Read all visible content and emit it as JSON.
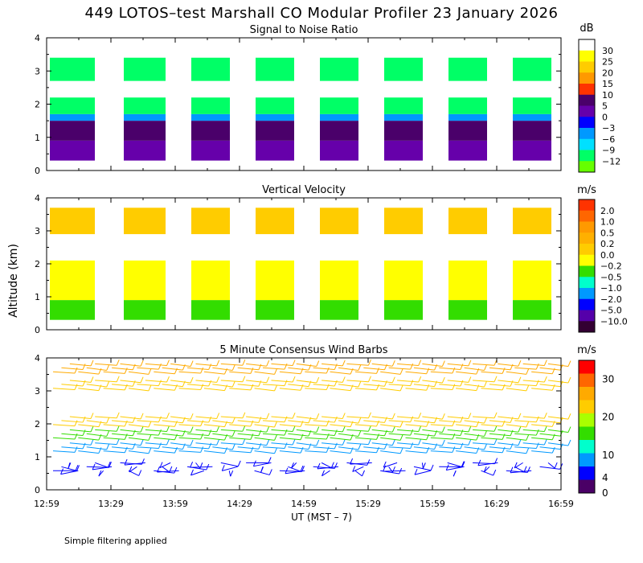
{
  "page": {
    "title": "449 LOTOS–test Marshall CO Modular Profiler 23 January 2026",
    "y_axis_label": "Altitude (km)",
    "x_axis_label": "UT  (MST – 7)",
    "footnote": "Simple filtering applied"
  },
  "chart_data": [
    {
      "type": "heatmap",
      "title": "Signal to Noise Ratio",
      "unit": "dB",
      "ylim": [
        0,
        4
      ],
      "y_ticks": [
        "0",
        "1",
        "2",
        "3",
        "4"
      ],
      "x_ticks": [
        "12:59",
        "13:29",
        "13:59",
        "14:29",
        "14:59",
        "15:29",
        "15:59",
        "16:29",
        "16:59"
      ],
      "colorbar_ticks": [
        "30",
        "25",
        "20",
        "15",
        "10",
        "5",
        "0",
        "−3",
        "−6",
        "−9",
        "−12"
      ],
      "colors": [
        "#ffffff",
        "#ffff00",
        "#ffcc00",
        "#ff9900",
        "#ff3300",
        "#4a006a",
        "#6600aa",
        "#0000ff",
        "#0099ff",
        "#00e0ff",
        "#00ff66",
        "#66ff00"
      ],
      "blocks": [
        {
          "start": 0.1,
          "end": 1.5
        },
        {
          "start": 2.4,
          "end": 3.7
        },
        {
          "start": 4.5,
          "end": 5.7
        },
        {
          "start": 6.5,
          "end": 7.7
        },
        {
          "start": 8.5,
          "end": 9.7
        },
        {
          "start": 10.5,
          "end": 11.7
        },
        {
          "start": 12.5,
          "end": 13.7
        },
        {
          "start": 14.5,
          "end": 15.7
        }
      ],
      "layers": [
        {
          "from": 0.3,
          "to": 0.9,
          "color_index": 6
        },
        {
          "from": 0.9,
          "to": 1.5,
          "color_index": 5
        },
        {
          "from": 1.5,
          "to": 1.7,
          "color_index": 8
        },
        {
          "from": 1.7,
          "to": 2.2,
          "color_index": 10
        },
        {
          "from": 2.7,
          "to": 3.4,
          "color_index": 10
        }
      ]
    },
    {
      "type": "heatmap",
      "title": "Vertical Velocity",
      "unit": "m/s",
      "ylim": [
        0,
        4
      ],
      "y_ticks": [
        "0",
        "1",
        "2",
        "3",
        "4"
      ],
      "x_ticks": [
        "12:59",
        "13:29",
        "13:59",
        "14:29",
        "14:59",
        "15:29",
        "15:59",
        "16:29",
        "16:59"
      ],
      "colorbar_ticks": [
        "2.0",
        "1.0",
        "0.5",
        "0.2",
        "0.0",
        "−0.2",
        "−0.5",
        "−1.0",
        "−2.0",
        "−5.0",
        "−10.0"
      ],
      "colors": [
        "#ff3300",
        "#ff6600",
        "#ff9900",
        "#ffb000",
        "#ffcc00",
        "#ffff00",
        "#33dd00",
        "#00ffcc",
        "#0099ff",
        "#0000ff",
        "#5500aa",
        "#330033"
      ],
      "blocks": [
        {
          "start": 0.1,
          "end": 1.5
        },
        {
          "start": 2.4,
          "end": 3.7
        },
        {
          "start": 4.5,
          "end": 5.7
        },
        {
          "start": 6.5,
          "end": 7.7
        },
        {
          "start": 8.5,
          "end": 9.7
        },
        {
          "start": 10.5,
          "end": 11.7
        },
        {
          "start": 12.5,
          "end": 13.7
        },
        {
          "start": 14.5,
          "end": 15.7
        }
      ],
      "layers": [
        {
          "from": 0.3,
          "to": 0.9,
          "color_index": 6
        },
        {
          "from": 0.9,
          "to": 2.1,
          "color_index": 5
        },
        {
          "from": 2.9,
          "to": 3.7,
          "color_index": 4
        }
      ]
    },
    {
      "type": "wind_barbs",
      "title": "5 Minute Consensus Wind Barbs",
      "unit": "m/s",
      "ylim": [
        0,
        4
      ],
      "y_ticks": [
        "0",
        "1",
        "2",
        "3",
        "4"
      ],
      "x_ticks": [
        "12:59",
        "13:29",
        "13:59",
        "14:29",
        "14:59",
        "15:29",
        "15:59",
        "16:29",
        "16:59"
      ],
      "colorbar_ticks": [
        "30",
        "20",
        "10",
        "4",
        "0"
      ],
      "colorbar_values": [
        30,
        20,
        10,
        4,
        0
      ],
      "colorbar_max": 35,
      "colors": [
        "#ff0000",
        "#ff6600",
        "#ffaa00",
        "#ffcc00",
        "#aaff00",
        "#33dd00",
        "#00ffcc",
        "#0099ff",
        "#0000ff",
        "#4a0066"
      ],
      "levels": [
        {
          "alt": 0.7,
          "speed": 3
        },
        {
          "alt": 1.3,
          "speed": 8
        },
        {
          "alt": 1.7,
          "speed": 14
        },
        {
          "alt": 2.1,
          "speed": 22
        },
        {
          "alt": 3.2,
          "speed": 24
        },
        {
          "alt": 3.7,
          "speed": 26
        }
      ]
    }
  ]
}
